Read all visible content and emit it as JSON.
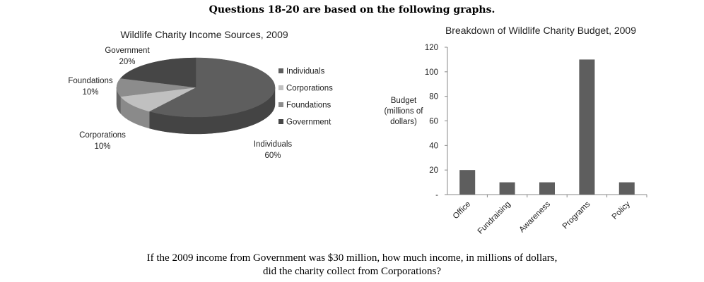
{
  "header": "Questions 18-20 are based on the following graphs.",
  "question": {
    "line1": "If the 2009 income from Government was $30 million, how much income, in millions of dollars,",
    "line2": "did the charity collect from Corporations?"
  },
  "chart_data": [
    {
      "type": "pie",
      "title": "Wildlife Charity Income Sources, 2009",
      "slices": [
        {
          "name": "Individuals",
          "value": 60,
          "label": "60%",
          "color": "#5e5e5e"
        },
        {
          "name": "Corporations",
          "value": 10,
          "label": "10%",
          "color": "#c0c0c0"
        },
        {
          "name": "Foundations",
          "value": 10,
          "label": "10%",
          "color": "#8c8c8c"
        },
        {
          "name": "Government",
          "value": 20,
          "label": "20%",
          "color": "#464646"
        }
      ],
      "legend": [
        "Individuals",
        "Corporations",
        "Foundations",
        "Government"
      ],
      "legend_position": "right",
      "style": "3d"
    },
    {
      "type": "bar",
      "title": "Breakdown of Wildlife Charity Budget, 2009",
      "categories": [
        "Office",
        "Fundraising",
        "Awareness",
        "Programs",
        "Policy"
      ],
      "values": [
        20,
        10,
        10,
        110,
        10
      ],
      "ylabel": [
        "Budget",
        "(millions of",
        "dollars)"
      ],
      "yticks": [
        "-",
        "20",
        "40",
        "60",
        "80",
        "100",
        "120"
      ],
      "ylim": [
        0,
        120
      ],
      "bar_color": "#5e5e5e",
      "grid": false
    }
  ]
}
